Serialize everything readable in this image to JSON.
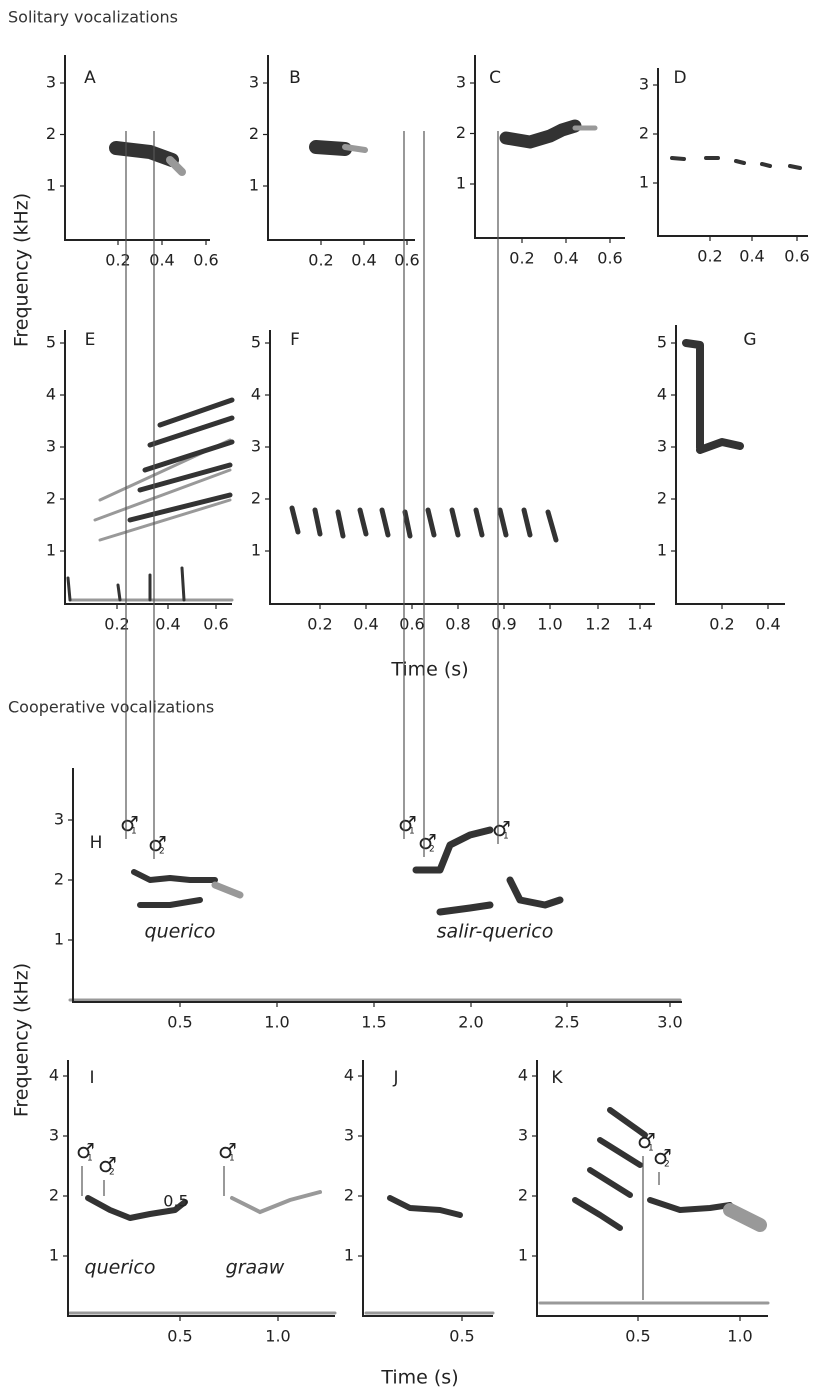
{
  "sections": [
    {
      "title": "Solitary vocalizations",
      "y_axis_label": "Frequency (kHz)",
      "x_axis_label": "Time (s)",
      "panels": [
        {
          "label": "A",
          "xticks": [
            "0.2",
            "0.4",
            "0.6"
          ],
          "yticks": [
            "1",
            "2",
            "3"
          ]
        },
        {
          "label": "B",
          "xticks": [
            "0.2",
            "0.4",
            "0.6"
          ],
          "yticks": [
            "1",
            "2",
            "3"
          ]
        },
        {
          "label": "C",
          "xticks": [
            "0.2",
            "0.4",
            "0.6"
          ],
          "yticks": [
            "1",
            "2",
            "3"
          ]
        },
        {
          "label": "D",
          "xticks": [
            "0.2",
            "0.4",
            "0.6"
          ],
          "yticks": [
            "1",
            "2",
            "3"
          ]
        },
        {
          "label": "E",
          "xticks": [
            "0.2",
            "0.4",
            "0.6"
          ],
          "yticks": [
            "1",
            "2",
            "3",
            "4",
            "5"
          ]
        },
        {
          "label": "F",
          "xticks": [
            "0.2",
            "0.4",
            "0.6",
            "0.8",
            "0.9",
            "1.0",
            "1.2",
            "1.4"
          ],
          "yticks": [
            "1",
            "2",
            "3",
            "4",
            "5"
          ]
        },
        {
          "label": "G",
          "xticks": [
            "0.2",
            "0.4"
          ],
          "yticks": [
            "1",
            "2",
            "3",
            "4",
            "5"
          ]
        }
      ]
    },
    {
      "title": "Cooperative vocalizations",
      "y_axis_label": "Frequency (kHz)",
      "x_axis_label": "Time (s)",
      "panels": [
        {
          "label": "H",
          "xticks": [
            "0.5",
            "1.0",
            "1.5",
            "2.0",
            "2.5",
            "3.0"
          ],
          "yticks": [
            "1",
            "2",
            "3"
          ],
          "annotations": [
            "querico",
            "salir-querico"
          ],
          "markers": [
            {
              "symbol": "♂",
              "sub": "1"
            },
            {
              "symbol": "♂",
              "sub": "2"
            },
            {
              "symbol": "♂",
              "sub": "1"
            },
            {
              "symbol": "♂",
              "sub": "2"
            },
            {
              "symbol": "♂",
              "sub": "1"
            }
          ]
        },
        {
          "label": "I",
          "xticks": [
            "0.5",
            "1.0"
          ],
          "yticks": [
            "1",
            "2",
            "3",
            "4"
          ],
          "annotations": [
            "querico",
            "graaw",
            "0.5"
          ],
          "markers": [
            {
              "symbol": "♂",
              "sub": "1"
            },
            {
              "symbol": "♂",
              "sub": "2"
            },
            {
              "symbol": "♂",
              "sub": "1"
            }
          ]
        },
        {
          "label": "J",
          "xticks": [
            "0.5"
          ],
          "yticks": [
            "1",
            "2",
            "3",
            "4"
          ]
        },
        {
          "label": "K",
          "xticks": [
            "0.5",
            "1.0"
          ],
          "yticks": [
            "1",
            "2",
            "3",
            "4"
          ],
          "markers": [
            {
              "symbol": "♂",
              "sub": "1"
            },
            {
              "symbol": "♂",
              "sub": "2"
            }
          ]
        }
      ]
    }
  ]
}
